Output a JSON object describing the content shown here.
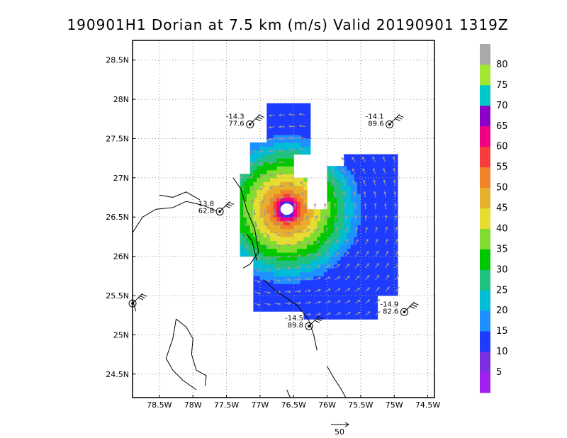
{
  "title": "190901H1 Dorian at 7.5 km (m/s) Valid 20190901  1319Z",
  "chart_data": {
    "type": "heatmap",
    "title": "190901H1 Dorian at 7.5 km (m/s) Valid 20190901  1319Z",
    "x_ticks": [
      "78.5W",
      "78W",
      "77.5W",
      "77W",
      "76.5W",
      "76W",
      "75.5W",
      "75W",
      "74.5W"
    ],
    "y_ticks": [
      "24.5N",
      "25N",
      "25.5N",
      "26N",
      "26.5N",
      "27N",
      "27.5N",
      "28N",
      "28.5N"
    ],
    "xlim": [
      -78.9,
      -74.4
    ],
    "ylim": [
      24.2,
      28.75
    ],
    "grid": true,
    "center": {
      "lon": -76.6,
      "lat": 26.6
    },
    "colorbar": {
      "labels": [
        "5",
        "10",
        "15",
        "20",
        "25",
        "30",
        "35",
        "40",
        "45",
        "50",
        "55",
        "60",
        "65",
        "70",
        "75",
        "80"
      ],
      "colors": [
        "#a020f0",
        "#7b2fe0",
        "#1e3cff",
        "#1e90ff",
        "#00bcd4",
        "#20c080",
        "#00c800",
        "#80dc30",
        "#e6dc32",
        "#e6af2d",
        "#f08228",
        "#fa3c3c",
        "#f00082",
        "#8c00c8",
        "#00c8c8",
        "#a0e632",
        "#a9a9a9"
      ]
    },
    "reference_vector": "50",
    "stations": [
      {
        "lon": -77.15,
        "lat": 27.68,
        "top": "-14.3",
        "bottom": "77.6"
      },
      {
        "lon": -75.07,
        "lat": 27.68,
        "top": "-14.1",
        "bottom": "89.6"
      },
      {
        "lon": -77.6,
        "lat": 26.57,
        "top": "-13.8",
        "bottom": "62.8"
      },
      {
        "lon": -76.27,
        "lat": 25.11,
        "top": "-14.5",
        "bottom": "89.8"
      },
      {
        "lon": -74.85,
        "lat": 25.29,
        "top": "-14.9",
        "bottom": "82.6"
      },
      {
        "lon": -78.9,
        "lat": 25.4
      }
    ]
  }
}
